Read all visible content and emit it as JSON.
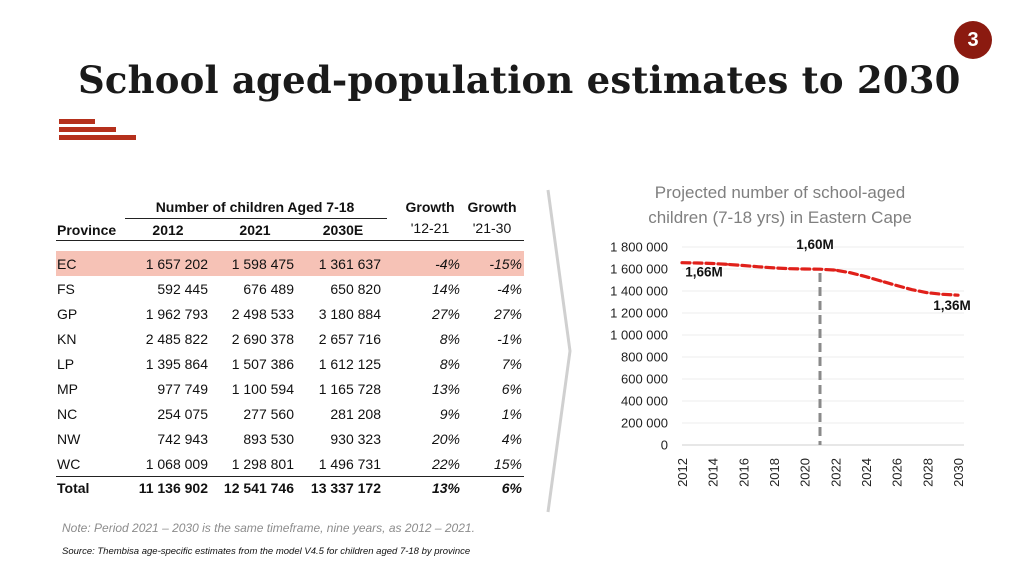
{
  "page_number": "3",
  "title": "School aged-population estimates to 2030",
  "table": {
    "group_header": "Number of children Aged 7-18",
    "headers": {
      "province": "Province",
      "y2012": "2012",
      "y2021": "2021",
      "y2030": "2030E",
      "growth1_a": "Growth",
      "growth1_b": "'12-21",
      "growth2_a": "Growth",
      "growth2_b": "'21-30"
    },
    "rows": [
      {
        "province": "EC",
        "y2012": "1 657 202",
        "y2021": "1 598 475",
        "y2030": "1 361 637",
        "g1": "-4%",
        "g2": "-15%"
      },
      {
        "province": "FS",
        "y2012": "592 445",
        "y2021": "676 489",
        "y2030": "650 820",
        "g1": "14%",
        "g2": "-4%"
      },
      {
        "province": "GP",
        "y2012": "1 962 793",
        "y2021": "2 498 533",
        "y2030": "3 180 884",
        "g1": "27%",
        "g2": "27%"
      },
      {
        "province": "KN",
        "y2012": "2 485 822",
        "y2021": "2 690 378",
        "y2030": "2 657 716",
        "g1": "8%",
        "g2": "-1%"
      },
      {
        "province": "LP",
        "y2012": "1 395 864",
        "y2021": "1 507 386",
        "y2030": "1 612 125",
        "g1": "8%",
        "g2": "7%"
      },
      {
        "province": "MP",
        "y2012": "977 749",
        "y2021": "1 100 594",
        "y2030": "1 165 728",
        "g1": "13%",
        "g2": "6%"
      },
      {
        "province": "NC",
        "y2012": "254 075",
        "y2021": "277 560",
        "y2030": "281 208",
        "g1": "9%",
        "g2": "1%"
      },
      {
        "province": "NW",
        "y2012": "742 943",
        "y2021": "893 530",
        "y2030": "930 323",
        "g1": "20%",
        "g2": "4%"
      },
      {
        "province": "WC",
        "y2012": "1 068 009",
        "y2021": "1 298 801",
        "y2030": "1 496 731",
        "g1": "22%",
        "g2": "15%"
      }
    ],
    "total": {
      "province": "Total",
      "y2012": "11 136 902",
      "y2021": "12 541 746",
      "y2030": "13 337 172",
      "g1": "13%",
      "g2": "6%"
    }
  },
  "note": "Note: Period 2021 – 2030 is the same timeframe, nine years, as 2012 – 2021.",
  "source": "Source: Thembisa age-specific estimates from the model V4.5 for children aged 7-18 by province",
  "chart_data": {
    "type": "line",
    "title": "Projected number of school-aged children (7-18 yrs) in Eastern Cape",
    "title_lines": [
      "Projected number of school-aged",
      "children (7-18 yrs) in Eastern Cape"
    ],
    "series": [
      {
        "name": "Eastern Cape 7-18",
        "x": [
          2012,
          2013,
          2014,
          2015,
          2016,
          2017,
          2018,
          2019,
          2020,
          2021,
          2022,
          2023,
          2024,
          2025,
          2026,
          2027,
          2028,
          2029,
          2030
        ],
        "values": [
          1657202,
          1655000,
          1650000,
          1642000,
          1632000,
          1620000,
          1610000,
          1603000,
          1600000,
          1598475,
          1590000,
          1565000,
          1530000,
          1490000,
          1450000,
          1412000,
          1385000,
          1370000,
          1361637
        ]
      }
    ],
    "ylim": [
      0,
      1800000
    ],
    "yticks": [
      0,
      200000,
      400000,
      600000,
      800000,
      1000000,
      1200000,
      1400000,
      1600000,
      1800000
    ],
    "ytick_labels": [
      "0",
      "200 000",
      "400 000",
      "600 000",
      "800 000",
      "1 000 000",
      "1 200 000",
      "1 400 000",
      "1 600 000",
      "1 800 000"
    ],
    "xticks": [
      "2012",
      "2014",
      "2016",
      "2018",
      "2020",
      "2022",
      "2024",
      "2026",
      "2028",
      "2030"
    ],
    "reference_line_x": 2021,
    "annotations": [
      {
        "x": 2012,
        "label": "1,66M"
      },
      {
        "x": 2021,
        "label": "1,60M"
      },
      {
        "x": 2030,
        "label": "1,36M"
      }
    ],
    "line_color": "#e0201a",
    "ref_color": "#8a8a8a"
  }
}
